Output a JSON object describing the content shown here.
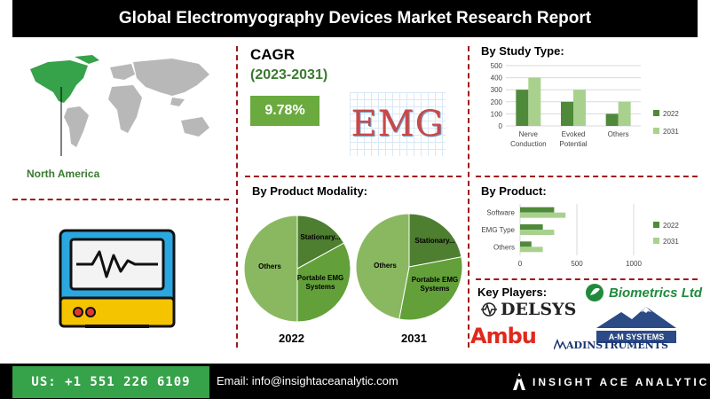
{
  "header": {
    "title": "Global Electromyography Devices Market Research Report"
  },
  "region": {
    "label": "North America"
  },
  "cagr": {
    "title": "CAGR",
    "period": "(2023-2031)",
    "value": "9.78%",
    "logo_text": "EMG"
  },
  "study_type": {
    "title": "By Study Type:"
  },
  "product_modality": {
    "title": "By Product Modality:"
  },
  "product": {
    "title": "By  Product:"
  },
  "key_players": {
    "title": "Key Players:",
    "companies": [
      "DELSYS",
      "Biometrics Ltd",
      "Ambu",
      "A-M SYSTEMS",
      "ADINSTRUMENTS"
    ]
  },
  "footer": {
    "phone": "US: +1 551 226 6109",
    "email": "Email: info@insightaceanalytic.com",
    "brand": "INSIGHT ACE ANALYTIC"
  },
  "colors": {
    "dark_green": "#4e8a3a",
    "light_green": "#a9d18e",
    "pie_dark": "#5a8a3c",
    "pie_light": "#8ab860",
    "dash": "#a01818",
    "phone_bg": "#36a24a"
  },
  "chart_data": [
    {
      "type": "bar",
      "title": "By Study Type:",
      "categories": [
        "Nerve Conduction",
        "Evoked Potential",
        "Others"
      ],
      "series": [
        {
          "name": "2022",
          "values": [
            300,
            200,
            100
          ]
        },
        {
          "name": "2031",
          "values": [
            400,
            300,
            200
          ]
        }
      ],
      "ylim": [
        0,
        500
      ],
      "yticks": [
        0,
        100,
        200,
        300,
        400,
        500
      ],
      "legend": "right"
    },
    {
      "type": "pie",
      "title": "By Product Modality:",
      "year": "2022",
      "slices": [
        {
          "label": "Stationary...",
          "value": 17
        },
        {
          "label": "Portable EMG Systems",
          "value": 33
        },
        {
          "label": "Others",
          "value": 50
        }
      ]
    },
    {
      "type": "pie",
      "title": "By Product Modality:",
      "year": "2031",
      "slices": [
        {
          "label": "Stationary...",
          "value": 22
        },
        {
          "label": "Portable EMG Systems",
          "value": 31
        },
        {
          "label": "Others",
          "value": 47
        }
      ]
    },
    {
      "type": "bar",
      "orientation": "horizontal",
      "title": "By  Product:",
      "categories": [
        "Software",
        "EMG Type",
        "Others"
      ],
      "series": [
        {
          "name": "2022",
          "values": [
            300,
            200,
            100
          ]
        },
        {
          "name": "2031",
          "values": [
            400,
            300,
            200
          ]
        }
      ],
      "xlim": [
        0,
        1000
      ],
      "xticks": [
        0,
        500,
        1000
      ],
      "legend": "right"
    }
  ]
}
